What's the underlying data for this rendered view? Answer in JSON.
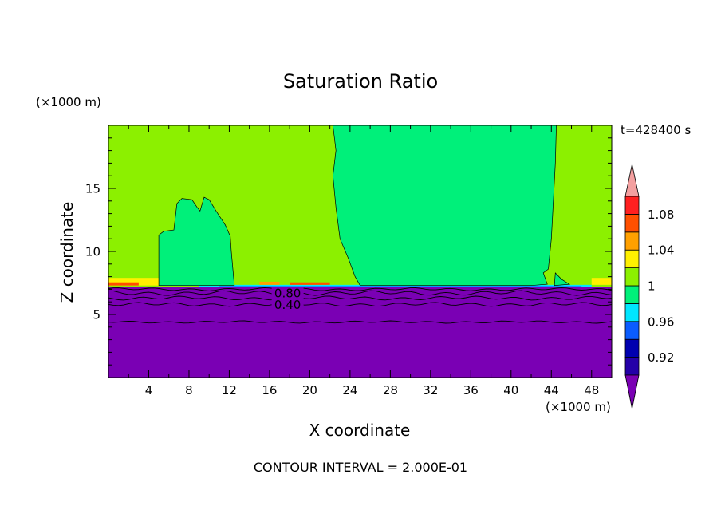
{
  "chart_data": {
    "type": "contour",
    "title": "Saturation Ratio",
    "xlabel": "X coordinate",
    "ylabel": "Z coordinate",
    "x_unit": "(×1000 m)",
    "y_unit": "(×1000 m)",
    "time_label": "t=428400 s",
    "footer": "CONTOUR INTERVAL = 2.000E-01",
    "xlim": [
      0,
      50
    ],
    "ylim": [
      0,
      20
    ],
    "x_ticks": [
      "4",
      "8",
      "12",
      "16",
      "20",
      "24",
      "28",
      "32",
      "36",
      "40",
      "44",
      "48"
    ],
    "y_ticks": [
      "5",
      "10",
      "15"
    ],
    "contour_labels": [
      "0.80",
      "0.40"
    ],
    "colorbar": {
      "levels": [
        0.9,
        0.92,
        0.94,
        0.96,
        0.98,
        1.0,
        1.02,
        1.04,
        1.06,
        1.08,
        1.1
      ],
      "colors": [
        "#7a00b4",
        "#2400a8",
        "#0000b0",
        "#0a5cff",
        "#00e6ff",
        "#00f07a",
        "#8cf000",
        "#fff000",
        "#ffa000",
        "#ff5000",
        "#ff2020",
        "#f4a0a0"
      ],
      "tick_labels": [
        "0.92",
        "0.96",
        "1",
        "1.04",
        "1.08"
      ]
    },
    "regions": [
      {
        "value": "< 0.90",
        "x_range": [
          0,
          50
        ],
        "z_range": [
          0,
          7.2
        ]
      },
      {
        "value": "1.00-1.02",
        "x_range": [
          0,
          50
        ],
        "z_range": [
          7.2,
          20
        ]
      },
      {
        "value": "0.98-1.00",
        "x_range": [
          5,
          12.5
        ],
        "z_range": [
          7.3,
          14.3
        ]
      },
      {
        "value": "0.98-1.00",
        "x_range": [
          22,
          44.5
        ],
        "z_range": [
          7.3,
          20
        ]
      }
    ]
  }
}
